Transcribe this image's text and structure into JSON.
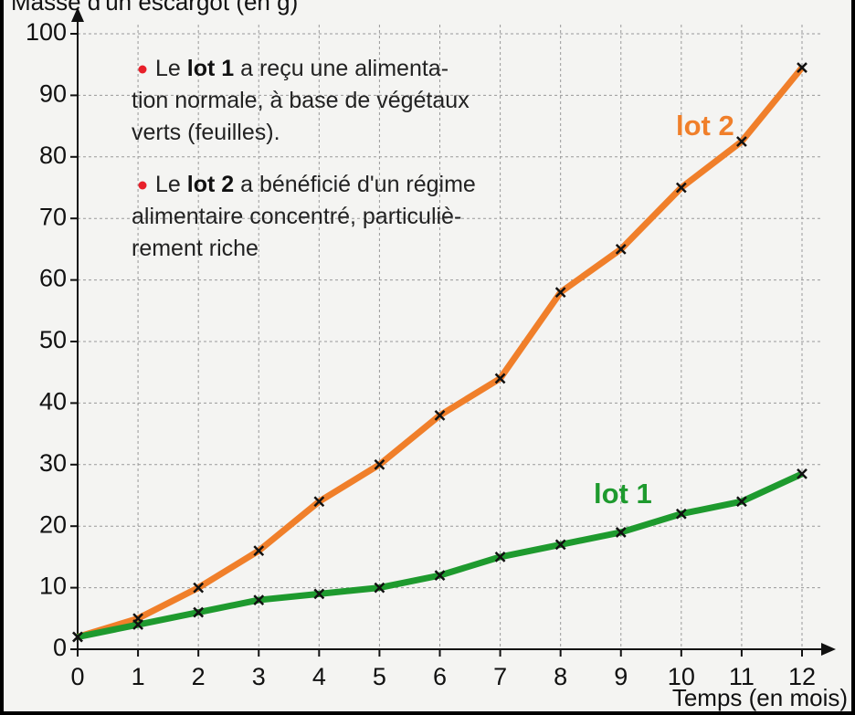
{
  "chart_data": {
    "type": "line",
    "y_label": "Masse d'un escargot (en g)",
    "x_label": "Temps (en mois)",
    "x": [
      0,
      1,
      2,
      3,
      4,
      5,
      6,
      7,
      8,
      9,
      10,
      11,
      12
    ],
    "xlim": [
      0,
      12
    ],
    "xticks": [
      0,
      1,
      2,
      3,
      4,
      5,
      6,
      7,
      8,
      9,
      10,
      11,
      12
    ],
    "ylim": [
      0,
      100
    ],
    "yticks": [
      0,
      10,
      20,
      30,
      40,
      50,
      60,
      70,
      80,
      90,
      100
    ],
    "grid": true,
    "series": [
      {
        "name": "lot 2",
        "color": "#f07f2a",
        "values": [
          2,
          5,
          10,
          16,
          24,
          30,
          38,
          44,
          58,
          65,
          75,
          82.5,
          94.5
        ]
      },
      {
        "name": "lot 1",
        "color": "#1e9a2e",
        "values": [
          2,
          4,
          6,
          8,
          9,
          10,
          12,
          15,
          17,
          19,
          22,
          24,
          28.5
        ]
      }
    ],
    "annotations": [
      {
        "lines": [
          [
            "Le ",
            "lot 1",
            " a reçu une alimenta-"
          ],
          [
            "tion normale, à base de végétaux"
          ],
          [
            "verts (feuilles)."
          ]
        ]
      },
      {
        "lines": [
          [
            "Le ",
            "lot 2",
            " a bénéficié d'un régime"
          ],
          [
            "alimentaire concentré, particuliè-"
          ],
          [
            "rement riche"
          ]
        ]
      }
    ]
  }
}
